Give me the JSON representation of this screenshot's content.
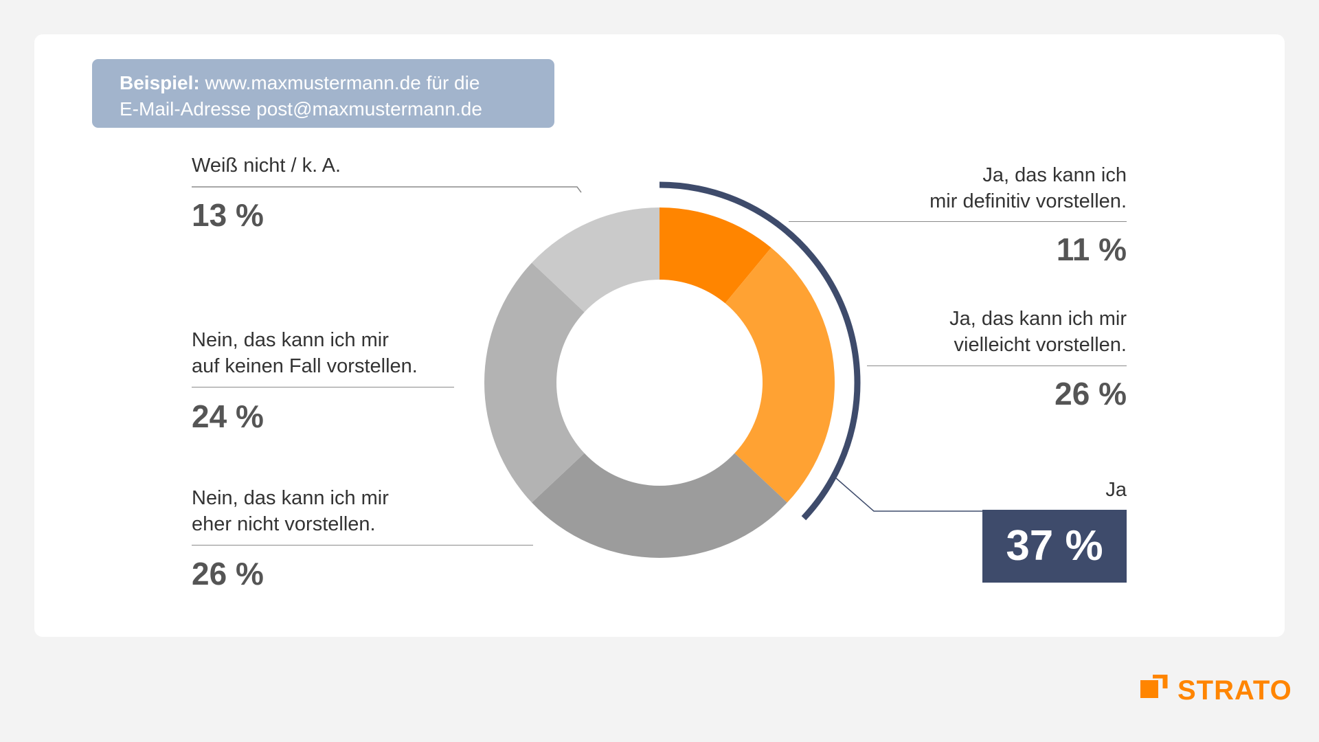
{
  "note": {
    "bold": "Beispiel:",
    "line1": "www.maxmustermann.de für die",
    "line2": "E-Mail-Adresse post@maxmustermann.de"
  },
  "labels": {
    "dontknow": {
      "line1": "Weiß nicht / k. A.",
      "value": "13 %"
    },
    "no_none": {
      "line1": "Nein, das kann ich mir",
      "line2": "auf keinen Fall vorstellen.",
      "value": "24 %"
    },
    "no_rather": {
      "line1": "Nein, das kann ich mir",
      "line2": "eher nicht vorstellen.",
      "value": "26 %"
    },
    "yes_def": {
      "line1": "Ja, das kann ich",
      "line2": "mir definitiv vorstellen.",
      "value": "11 %"
    },
    "yes_maybe": {
      "line1": "Ja, das kann ich mir",
      "line2": "vielleicht vorstellen.",
      "value": "26 %"
    },
    "yes_total": {
      "line1": "Ja",
      "value": "37 %"
    }
  },
  "chart_data": {
    "type": "pie",
    "variant": "donut",
    "categories": [
      "Ja, das kann ich mir definitiv vorstellen.",
      "Ja, das kann ich mir vielleicht vorstellen.",
      "Nein, das kann ich mir eher nicht vorstellen.",
      "Nein, das kann ich mir auf keinen Fall vorstellen.",
      "Weiß nicht / k. A."
    ],
    "values": [
      11,
      26,
      26,
      24,
      13
    ],
    "colors": [
      "#ff8500",
      "#ffa233",
      "#9c9c9c",
      "#b3b3b3",
      "#cacaca"
    ],
    "highlight": {
      "label": "Ja",
      "value": 37,
      "color": "#3e4b6b"
    },
    "start": "top",
    "direction": "clockwise"
  },
  "brand": {
    "name": "STRATO",
    "color": "#ff8500"
  }
}
